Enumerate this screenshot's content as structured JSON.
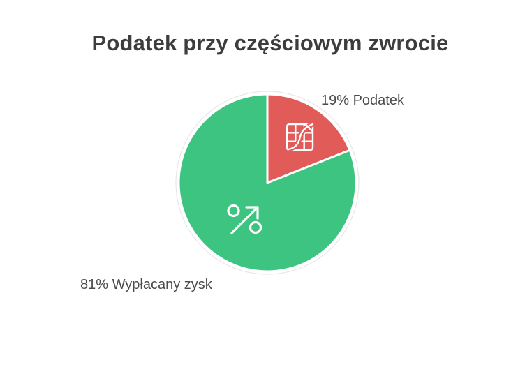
{
  "page": {
    "background": "#ffffff"
  },
  "chart_data": {
    "type": "pie",
    "title": "Podatek przy częściowym zwrocie",
    "start_angle_deg": 0,
    "direction": "clockwise",
    "legend_position": "outside-labels",
    "slices": [
      {
        "name": "Podatek",
        "value": 19,
        "unit": "%",
        "label": "19% Podatek",
        "color": "#e15b58",
        "icon": "chart-grid-icon"
      },
      {
        "name": "Wypłacany zysk",
        "value": 81,
        "unit": "%",
        "label": "81% Wypłacany zysk",
        "color": "#3ec481",
        "icon": "percent-growth-icon"
      }
    ]
  },
  "colors": {
    "title_text": "#3d3d3d",
    "label_text": "#4a4a4a",
    "slice_separator": "#ffffff",
    "outer_ring": "#e7e7e7",
    "icon_stroke": "#ffffff"
  },
  "icons": {
    "red_slice": "chart-grid-icon",
    "green_slice": "percent-growth-icon"
  }
}
